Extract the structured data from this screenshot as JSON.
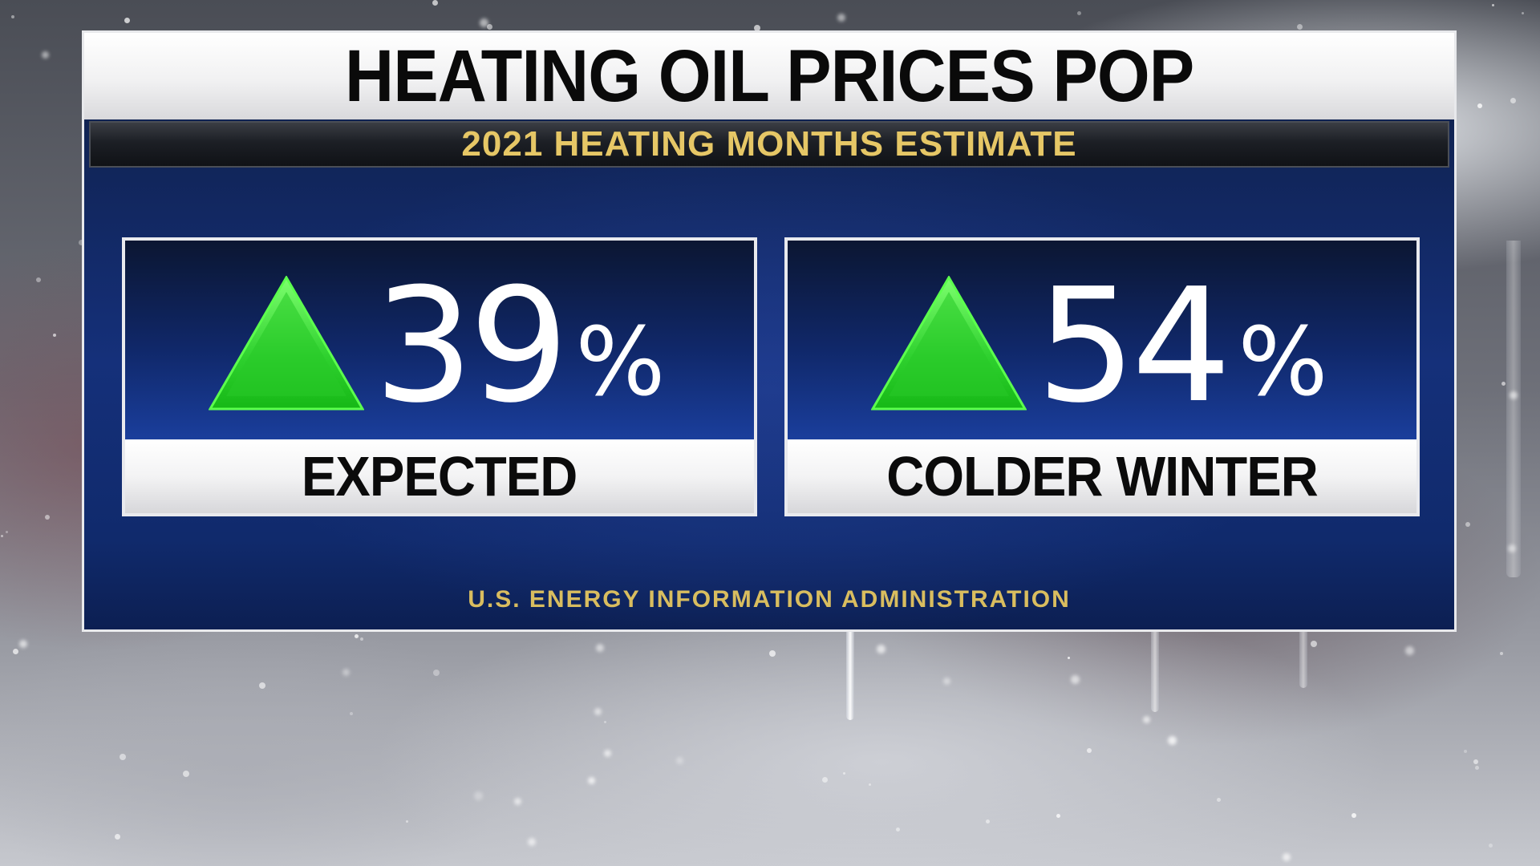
{
  "title": "HEATING OIL PRICES POP",
  "subtitle": "2021 HEATING MONTHS ESTIMATE",
  "stats": [
    {
      "direction_icon": "up-triangle-icon",
      "value": "39",
      "unit": "%",
      "label": "EXPECTED"
    },
    {
      "direction_icon": "up-triangle-icon",
      "value": "54",
      "unit": "%",
      "label": "COLDER WINTER"
    }
  ],
  "source": "U.S. ENERGY INFORMATION ADMINISTRATION",
  "colors": {
    "accent_gold": "#e6c766",
    "arrow_green": "#2ecc2e",
    "panel_blue": "#15307a"
  }
}
